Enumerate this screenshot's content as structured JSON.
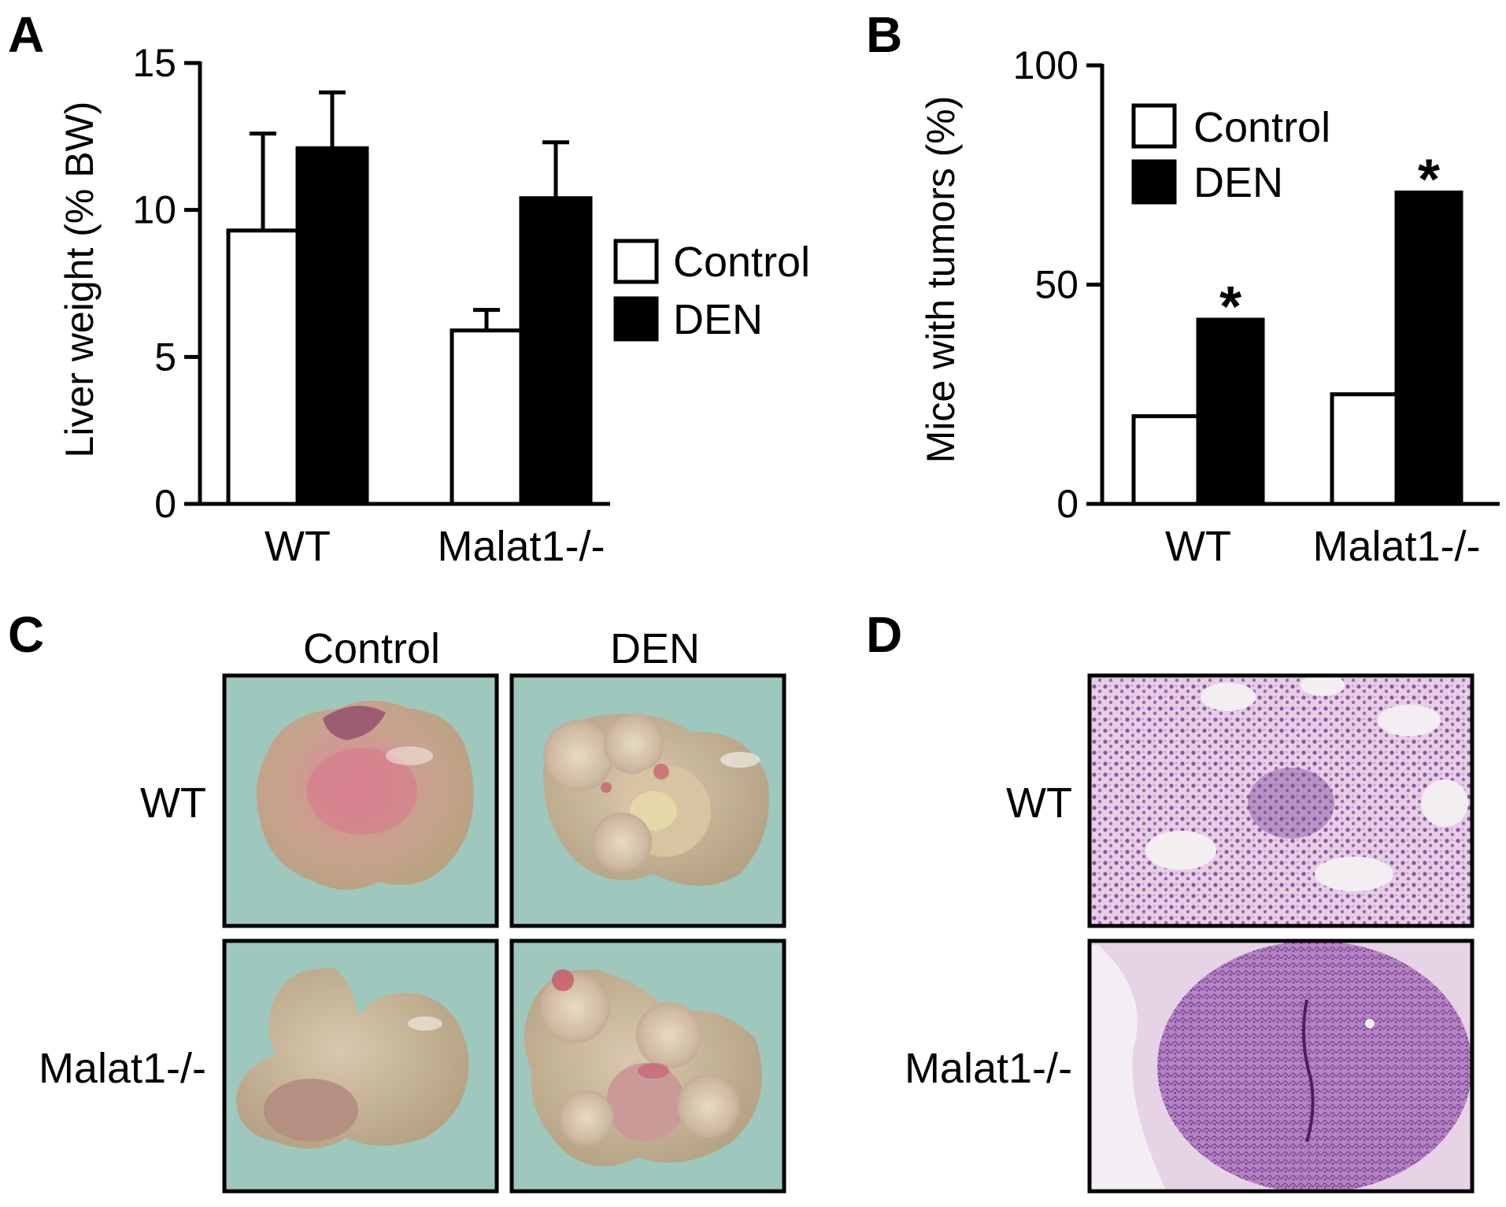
{
  "panels": {
    "a": {
      "letter": "A"
    },
    "b": {
      "letter": "B"
    },
    "c": {
      "letter": "C"
    },
    "d": {
      "letter": "D"
    }
  },
  "legend": {
    "control": "Control",
    "den": "DEN"
  },
  "colors": {
    "control": "#ffffff",
    "den": "#000000",
    "axis": "#000000"
  },
  "chart_data": [
    {
      "panel": "A",
      "type": "bar",
      "categories": [
        "WT",
        "Malat1-/-"
      ],
      "ylabel": "Liver weight (% BW)",
      "xlabel": "",
      "ylim": [
        0,
        15
      ],
      "yticks": [
        "0",
        "5",
        "10",
        "15"
      ],
      "series": [
        {
          "name": "Control",
          "values": [
            9.3,
            5.9
          ],
          "errors": [
            3.3,
            0.7
          ]
        },
        {
          "name": "DEN",
          "values": [
            12.1,
            10.4
          ],
          "errors": [
            1.9,
            1.9
          ]
        }
      ],
      "legend_position": "right",
      "grid": false
    },
    {
      "panel": "B",
      "type": "bar",
      "categories": [
        "WT",
        "Malat1-/-"
      ],
      "ylabel": "Mice with tumors (%)",
      "xlabel": "",
      "ylim": [
        0,
        100
      ],
      "yticks": [
        "0",
        "50",
        "100"
      ],
      "series": [
        {
          "name": "Control",
          "values": [
            20,
            25
          ]
        },
        {
          "name": "DEN",
          "values": [
            42,
            71
          ]
        }
      ],
      "annotations": [
        "*",
        "*"
      ],
      "legend_position": "top-left",
      "grid": false
    }
  ],
  "panel_c": {
    "columns": [
      "Control",
      "DEN"
    ],
    "rows": [
      "WT",
      "Malat1-/-"
    ],
    "images": [
      "WT control liver photograph",
      "WT DEN liver photograph with tumors",
      "Malat1-/- control liver photograph",
      "Malat1-/- DEN liver photograph with tumors"
    ]
  },
  "panel_d": {
    "rows": [
      "WT",
      "Malat1-/-"
    ],
    "images": [
      "WT H&E stained liver section",
      "Malat1-/- H&E stained liver section"
    ]
  }
}
